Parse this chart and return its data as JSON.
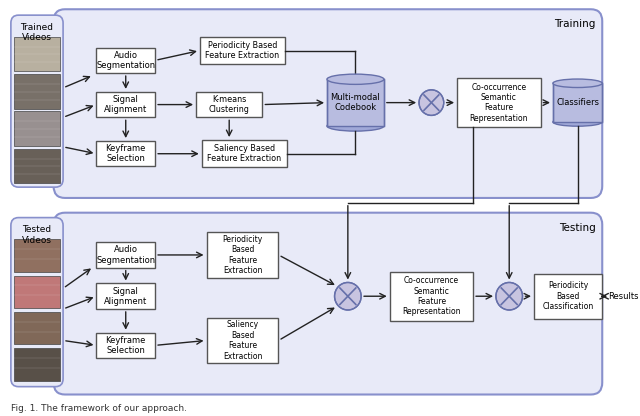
{
  "bg_color": "#ffffff",
  "section_fill": "#e8eaF8",
  "section_edge": "#8890cc",
  "box_fill": "#ffffff",
  "box_edge": "#555555",
  "cylinder_fill": "#b8bce0",
  "cylinder_edge": "#6670aa",
  "circle_fill": "#c8c4e0",
  "circle_edge": "#6670aa",
  "arrow_color": "#222222",
  "text_color": "#000000",
  "training_label": "Training",
  "testing_label": "Testing",
  "caption": "Fig. 1. The framework of our approach.",
  "trained_label": "Trained\nVideos",
  "tested_label": "Tested\nVideos",
  "results_label": "Results",
  "img_strip_train_colors": [
    "#c8c0b0",
    "#888070",
    "#a09088",
    "#706860"
  ],
  "img_strip_test_colors": [
    "#906858",
    "#c08878",
    "#887060",
    "#686058"
  ]
}
